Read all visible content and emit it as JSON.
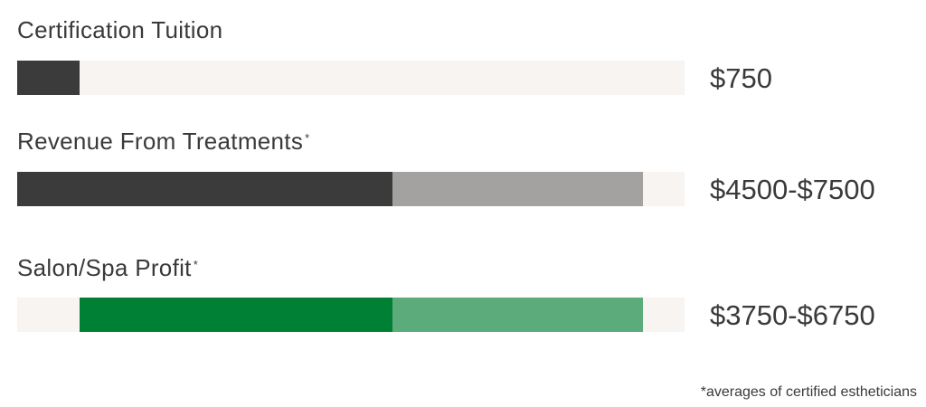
{
  "chart_data": {
    "type": "bar",
    "orientation": "horizontal",
    "xlim": [
      0,
      8000
    ],
    "grid": false,
    "rows": [
      {
        "label": "Certification Tuition",
        "asterisk": "",
        "value_label": "$750",
        "segments": [
          {
            "start": 0,
            "end": 750,
            "color": "#3b3b3b"
          }
        ]
      },
      {
        "label": "Revenue From Treatments",
        "asterisk": "*",
        "value_label": "$4500-$7500",
        "segments": [
          {
            "start": 0,
            "end": 4500,
            "color": "#3b3b3b"
          },
          {
            "start": 4500,
            "end": 7500,
            "color": "#a3a2a0"
          }
        ]
      },
      {
        "label": "Salon/Spa Profit",
        "asterisk": "*",
        "value_label": "$3750-$6750",
        "segments": [
          {
            "start": 750,
            "end": 4500,
            "color": "#008035"
          },
          {
            "start": 4500,
            "end": 7500,
            "color": "#5bab7b"
          }
        ]
      }
    ],
    "track_color": "#f7f4f1",
    "footnote": "*averages of certified estheticians"
  }
}
